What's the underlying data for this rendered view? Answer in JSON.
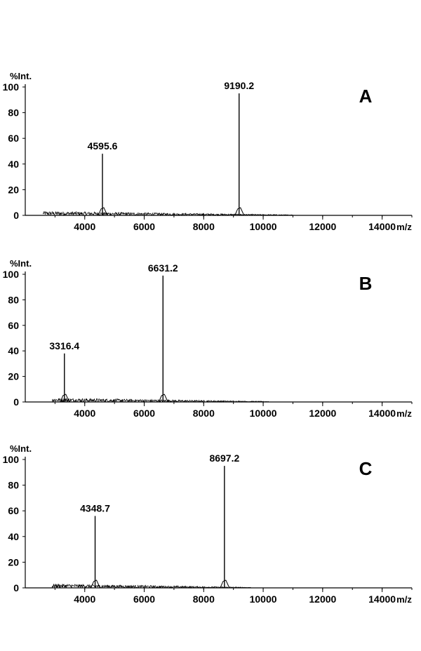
{
  "chart_data": [
    {
      "type": "line",
      "panel_label": "A",
      "ylabel": "%Int.",
      "xlabel": "m/z",
      "ylim": [
        0,
        100
      ],
      "yticks": [
        0,
        20,
        40,
        60,
        80,
        100
      ],
      "xlim": [
        2000,
        15000
      ],
      "xticks": [
        4000,
        6000,
        8000,
        10000,
        12000,
        14000
      ],
      "noise_range": [
        2600,
        11000
      ],
      "peaks": [
        {
          "x": 4595.6,
          "y": 48,
          "label": "4595.6"
        },
        {
          "x": 9190.2,
          "y": 95,
          "label": "9190.2"
        }
      ]
    },
    {
      "type": "line",
      "panel_label": "B",
      "ylabel": "%Int.",
      "xlabel": "m/z",
      "ylim": [
        0,
        100
      ],
      "yticks": [
        0,
        20,
        40,
        60,
        80,
        100
      ],
      "xlim": [
        2000,
        15000
      ],
      "xticks": [
        4000,
        6000,
        8000,
        10000,
        12000,
        14000
      ],
      "noise_range": [
        2900,
        10200
      ],
      "peaks": [
        {
          "x": 3316.4,
          "y": 38,
          "label": "3316.4"
        },
        {
          "x": 6631.2,
          "y": 99,
          "label": "6631.2"
        }
      ]
    },
    {
      "type": "line",
      "panel_label": "C",
      "ylabel": "%Int.",
      "xlabel": "m/z",
      "ylim": [
        0,
        100
      ],
      "yticks": [
        0,
        20,
        40,
        60,
        80,
        100
      ],
      "xlim": [
        2000,
        15000
      ],
      "xticks": [
        4000,
        6000,
        8000,
        10000,
        12000,
        14000
      ],
      "noise_range": [
        2900,
        9600
      ],
      "peaks": [
        {
          "x": 4348.7,
          "y": 56,
          "label": "4348.7"
        },
        {
          "x": 8697.2,
          "y": 95,
          "label": "8697.2"
        }
      ]
    }
  ]
}
